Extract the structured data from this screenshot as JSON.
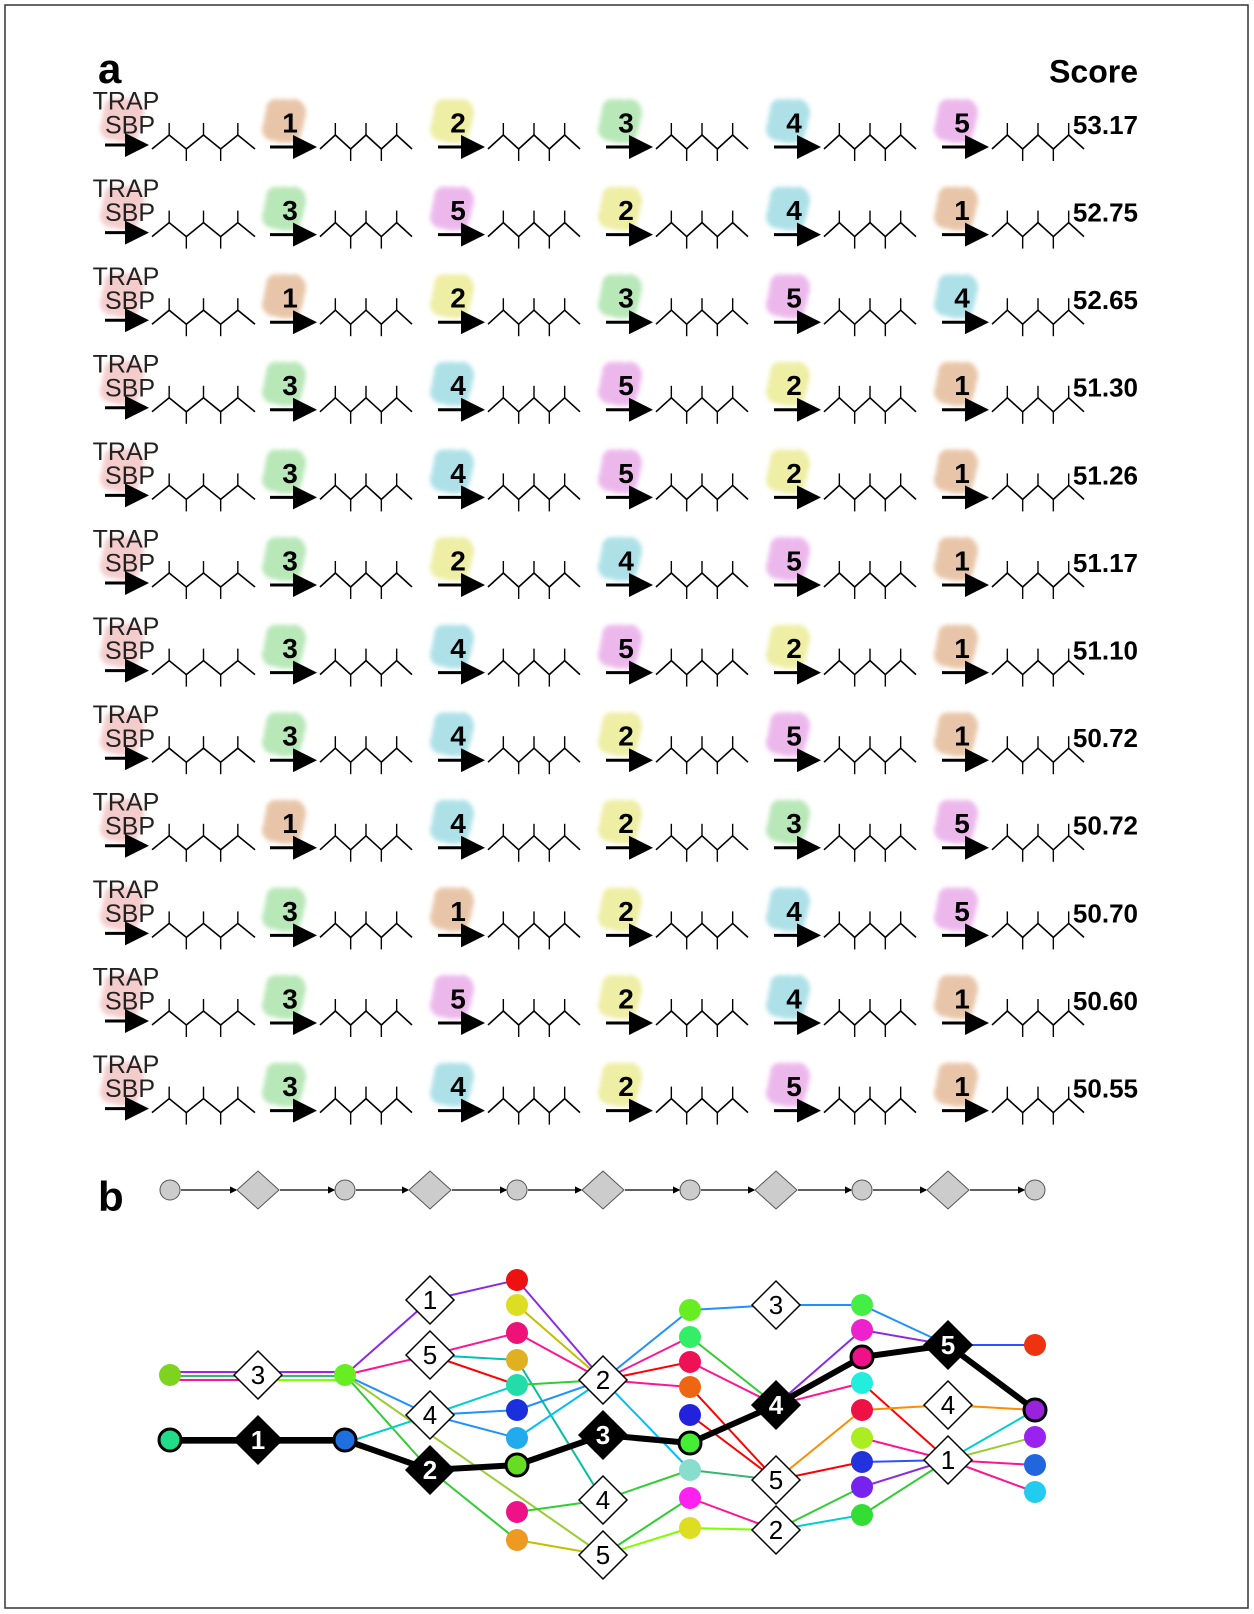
{
  "panel_a": {
    "label": "a",
    "score_header": "Score",
    "rows": [
      {
        "transporter": [
          "TRAP",
          "SBP"
        ],
        "steps": [
          "1",
          "2",
          "3",
          "4",
          "5"
        ],
        "score": "53.17"
      },
      {
        "transporter": [
          "TRAP",
          "SBP"
        ],
        "steps": [
          "3",
          "5",
          "2",
          "4",
          "1"
        ],
        "score": "52.75"
      },
      {
        "transporter": [
          "TRAP",
          "SBP"
        ],
        "steps": [
          "1",
          "2",
          "3",
          "5",
          "4"
        ],
        "score": "52.65"
      },
      {
        "transporter": [
          "TRAP",
          "SBP"
        ],
        "steps": [
          "3",
          "4",
          "5",
          "2",
          "1"
        ],
        "score": "51.30"
      },
      {
        "transporter": [
          "TRAP",
          "SBP"
        ],
        "steps": [
          "3",
          "4",
          "5",
          "2",
          "1"
        ],
        "score": "51.26"
      },
      {
        "transporter": [
          "TRAP",
          "SBP"
        ],
        "steps": [
          "3",
          "2",
          "4",
          "5",
          "1"
        ],
        "score": "51.17"
      },
      {
        "transporter": [
          "TRAP",
          "SBP"
        ],
        "steps": [
          "3",
          "4",
          "5",
          "2",
          "1"
        ],
        "score": "51.10"
      },
      {
        "transporter": [
          "TRAP",
          "SBP"
        ],
        "steps": [
          "3",
          "4",
          "2",
          "5",
          "1"
        ],
        "score": "50.72"
      },
      {
        "transporter": [
          "TRAP",
          "SBP"
        ],
        "steps": [
          "1",
          "4",
          "2",
          "3",
          "5"
        ],
        "score": "50.72"
      },
      {
        "transporter": [
          "TRAP",
          "SBP"
        ],
        "steps": [
          "3",
          "1",
          "2",
          "4",
          "5"
        ],
        "score": "50.70"
      },
      {
        "transporter": [
          "TRAP",
          "SBP"
        ],
        "steps": [
          "3",
          "5",
          "2",
          "4",
          "1"
        ],
        "score": "50.60"
      },
      {
        "transporter": [
          "TRAP",
          "SBP"
        ],
        "steps": [
          "3",
          "4",
          "2",
          "5",
          "1"
        ],
        "score": "50.55"
      }
    ]
  },
  "panel_b": {
    "label": "b",
    "diamonds": [
      {
        "label": "3"
      },
      {
        "label": "1"
      },
      {
        "label": "1"
      },
      {
        "label": "5"
      },
      {
        "label": "4"
      },
      {
        "label": "2"
      },
      {
        "label": "2"
      },
      {
        "label": "3"
      },
      {
        "label": "4"
      },
      {
        "label": "5"
      },
      {
        "label": "3"
      },
      {
        "label": "4"
      },
      {
        "label": "5"
      },
      {
        "label": "2"
      },
      {
        "label": "5"
      },
      {
        "label": "4"
      },
      {
        "label": "1"
      }
    ]
  }
}
